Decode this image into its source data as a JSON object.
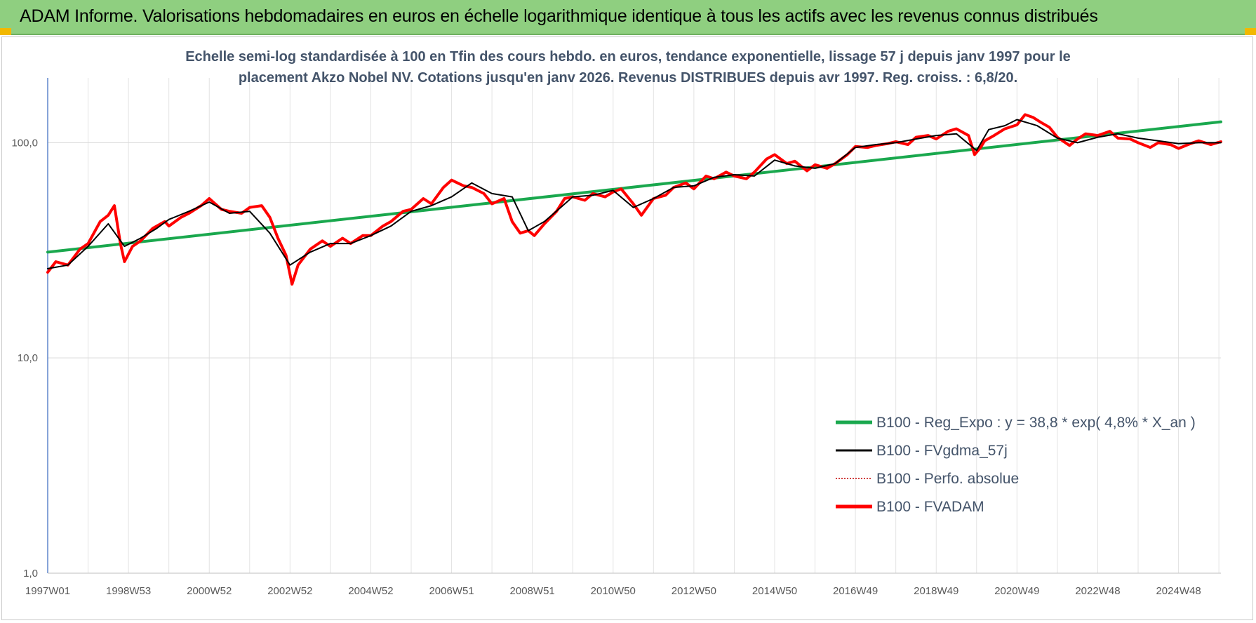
{
  "banner": {
    "title": "ADAM Informe. Valorisations hebdomadaires en euros en échelle logarithmique identique à tous les actifs avec les revenus connus distribués",
    "color": "#8fcf80",
    "corner_color": "#f2b800"
  },
  "chart_data": {
    "type": "line",
    "subtitle_lines": [
      "Echelle semi-log standardisée à 100 en Tfin des cours hebdo. en euros, tendance exponentielle, lissage 57 j depuis janv 1997 pour le",
      "placement Akzo Nobel NV. Cotations jusqu'en janv 2026.  Revenus DISTRIBUES depuis avr 1997. Reg. croiss. : 6,8/20."
    ],
    "y_scale": "log",
    "ylim": [
      1,
      200
    ],
    "y_ticks": [
      {
        "value": 1,
        "label": "1,0"
      },
      {
        "value": 10,
        "label": "10,0"
      },
      {
        "value": 100,
        "label": "100,0"
      }
    ],
    "x_range": [
      1997.0,
      2026.05
    ],
    "x_ticks": [
      {
        "x": 1997.0,
        "label": "1997W01"
      },
      {
        "x": 1999.0,
        "label": "1998W53"
      },
      {
        "x": 2001.0,
        "label": "2000W52"
      },
      {
        "x": 2003.0,
        "label": "2002W52"
      },
      {
        "x": 2005.0,
        "label": "2004W52"
      },
      {
        "x": 2007.0,
        "label": "2006W51"
      },
      {
        "x": 2009.0,
        "label": "2008W51"
      },
      {
        "x": 2011.0,
        "label": "2010W50"
      },
      {
        "x": 2013.0,
        "label": "2012W50"
      },
      {
        "x": 2015.0,
        "label": "2014W50"
      },
      {
        "x": 2017.0,
        "label": "2016W49"
      },
      {
        "x": 2019.0,
        "label": "2018W49"
      },
      {
        "x": 2021.0,
        "label": "2020W49"
      },
      {
        "x": 2023.0,
        "label": "2022W48"
      },
      {
        "x": 2025.0,
        "label": "2024W48"
      }
    ],
    "grid": "both",
    "legend_position": "bottom-right",
    "series": [
      {
        "name": "B100 - Reg_Expo : y = 38,8 * exp( 4,8% *  X_an )",
        "color": "#1aa84e",
        "style": "solid-thick",
        "x": [
          1997.0,
          2026.05
        ],
        "values": [
          31,
          125
        ]
      },
      {
        "name": "B100 - FVgdma_57j",
        "color": "#000000",
        "style": "solid",
        "x": [
          1997.0,
          1997.5,
          1998.0,
          1998.5,
          1998.9,
          1999.3,
          1999.7,
          2000.0,
          2000.5,
          2001.0,
          2001.5,
          2002.0,
          2002.5,
          2003.0,
          2003.5,
          2004.0,
          2004.5,
          2005.0,
          2005.5,
          2006.0,
          2006.5,
          2007.0,
          2007.5,
          2008.0,
          2008.5,
          2008.9,
          2009.3,
          2009.7,
          2010.0,
          2010.5,
          2011.0,
          2011.5,
          2012.0,
          2012.5,
          2013.0,
          2013.5,
          2014.0,
          2014.5,
          2015.0,
          2015.5,
          2016.0,
          2016.5,
          2017.0,
          2017.5,
          2018.0,
          2018.5,
          2019.0,
          2019.5,
          2020.0,
          2020.3,
          2020.7,
          2021.0,
          2021.5,
          2022.0,
          2022.5,
          2023.0,
          2023.5,
          2024.0,
          2024.5,
          2025.0,
          2025.5,
          2026.05
        ],
        "values": [
          26,
          27,
          33,
          42,
          33,
          36,
          40,
          44,
          48,
          53,
          47,
          48,
          38,
          27,
          31,
          34,
          34,
          37,
          41,
          48,
          51,
          56,
          65,
          58,
          56,
          39,
          43,
          50,
          56,
          57,
          60,
          50,
          55,
          62,
          63,
          69,
          71,
          70,
          83,
          78,
          76,
          80,
          95,
          98,
          100,
          104,
          108,
          110,
          92,
          115,
          120,
          128,
          120,
          105,
          100,
          106,
          110,
          105,
          102,
          99,
          100,
          100
        ]
      },
      {
        "name": "B100 - Perfo. absolue",
        "color": "#c00000",
        "style": "dotted",
        "x": [],
        "values": []
      },
      {
        "name": "B100 - FVADAM",
        "color": "#ff0000",
        "style": "solid-thick",
        "x": [
          1997.0,
          1997.2,
          1997.5,
          1997.8,
          1998.0,
          1998.3,
          1998.5,
          1998.65,
          1998.8,
          1998.9,
          1999.1,
          1999.3,
          1999.6,
          1999.9,
          2000.0,
          2000.3,
          2000.5,
          2000.8,
          2001.0,
          2001.3,
          2001.5,
          2001.8,
          2002.0,
          2002.3,
          2002.5,
          2002.7,
          2002.9,
          2003.05,
          2003.2,
          2003.5,
          2003.8,
          2004.0,
          2004.3,
          2004.5,
          2004.8,
          2005.0,
          2005.3,
          2005.5,
          2005.8,
          2006.0,
          2006.3,
          2006.5,
          2006.8,
          2007.0,
          2007.3,
          2007.5,
          2007.8,
          2008.0,
          2008.3,
          2008.5,
          2008.7,
          2008.9,
          2009.05,
          2009.3,
          2009.6,
          2009.8,
          2010.0,
          2010.3,
          2010.5,
          2010.8,
          2011.0,
          2011.2,
          2011.5,
          2011.7,
          2012.0,
          2012.3,
          2012.5,
          2012.8,
          2013.0,
          2013.3,
          2013.5,
          2013.8,
          2014.0,
          2014.3,
          2014.5,
          2014.8,
          2015.0,
          2015.3,
          2015.5,
          2015.8,
          2016.0,
          2016.3,
          2016.5,
          2016.8,
          2017.0,
          2017.3,
          2017.5,
          2017.8,
          2018.0,
          2018.3,
          2018.5,
          2018.8,
          2019.0,
          2019.3,
          2019.5,
          2019.8,
          2019.95,
          2020.1,
          2020.2,
          2020.4,
          2020.7,
          2021.0,
          2021.2,
          2021.4,
          2021.6,
          2021.8,
          2022.0,
          2022.3,
          2022.5,
          2022.7,
          2023.0,
          2023.3,
          2023.5,
          2023.8,
          2024.0,
          2024.3,
          2024.5,
          2024.8,
          2025.0,
          2025.3,
          2025.5,
          2025.8,
          2026.05
        ],
        "values": [
          25,
          28,
          27,
          32,
          34,
          43,
          46,
          51,
          34,
          28,
          33,
          35,
          40,
          43,
          41,
          45,
          47,
          51,
          55,
          49,
          48,
          47,
          50,
          51,
          45,
          36,
          30,
          22,
          27,
          32,
          35,
          33,
          36,
          34,
          37,
          37,
          41,
          43,
          48,
          49,
          55,
          52,
          62,
          67,
          63,
          62,
          58,
          52,
          55,
          43,
          38,
          39,
          37,
          42,
          48,
          55,
          56,
          54,
          58,
          56,
          59,
          61,
          52,
          46,
          55,
          57,
          62,
          65,
          61,
          70,
          68,
          73,
          70,
          68,
          73,
          84,
          88,
          80,
          82,
          74,
          79,
          76,
          80,
          88,
          96,
          95,
          97,
          99,
          101,
          98,
          106,
          108,
          104,
          113,
          116,
          108,
          88,
          95,
          102,
          107,
          116,
          121,
          135,
          131,
          124,
          118,
          106,
          97,
          104,
          110,
          108,
          113,
          105,
          104,
          100,
          95,
          100,
          98,
          94,
          99,
          102,
          98,
          101
        ]
      }
    ]
  }
}
